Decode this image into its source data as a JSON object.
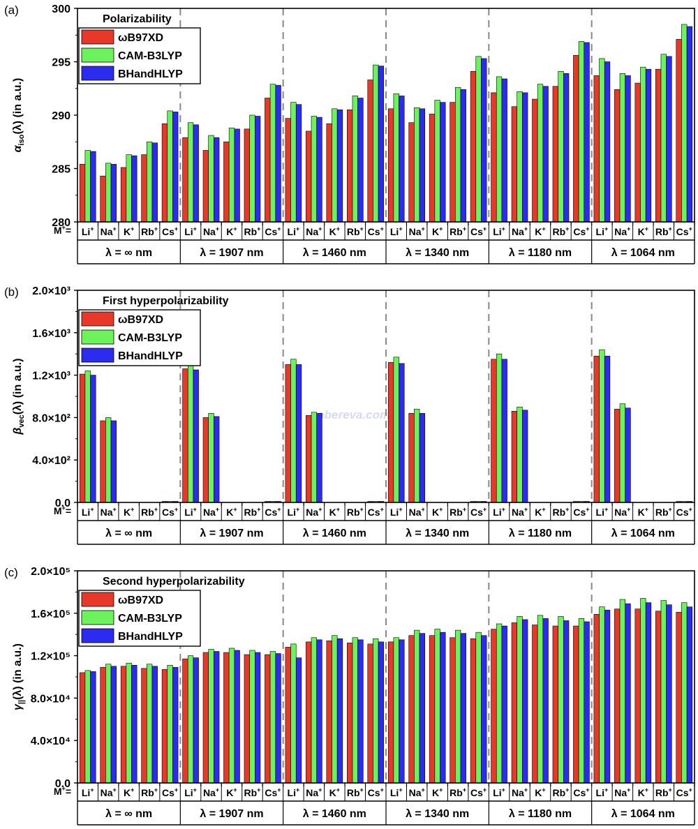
{
  "colors": {
    "series": [
      "#e8382a",
      "#6cf25a",
      "#2c2cf0"
    ]
  },
  "watermark": "sobereva.com",
  "chart_data": [
    {
      "type": "bar",
      "panel_label": "(a)",
      "title": "Polarizability",
      "ylabel_main": "α",
      "ylabel_sub": "iso",
      "ylabel_rest": "(λ) (in a.u.)",
      "ylim": [
        280,
        300
      ],
      "yticks": [
        "280",
        "285",
        "290",
        "295",
        "300"
      ],
      "row_label": "M",
      "row_label_sup": "+",
      "row_label_suffix": "=",
      "ions": [
        "Li",
        "Na",
        "K",
        "Rb",
        "Cs"
      ],
      "ion_sup": "+",
      "groups": [
        "λ = ∞ nm",
        "λ = 1907 nm",
        "λ = 1460 nm",
        "λ = 1340 nm",
        "λ = 1180 nm",
        "λ = 1064 nm"
      ],
      "legend": [
        "ωB97XD",
        "CAM-B3LYP",
        "BHandHLYP"
      ],
      "series": [
        {
          "name": "ωB97XD",
          "values": [
            285.4,
            284.3,
            285.1,
            286.3,
            289.2,
            287.9,
            286.7,
            287.5,
            288.7,
            291.6,
            289.7,
            288.5,
            289.2,
            290.5,
            293.3,
            290.6,
            289.3,
            290.1,
            291.2,
            294.1,
            292.1,
            290.8,
            291.5,
            292.7,
            295.6,
            293.7,
            292.4,
            293.0,
            294.3,
            297.1
          ]
        },
        {
          "name": "CAM-B3LYP",
          "values": [
            286.7,
            285.5,
            286.3,
            287.5,
            290.4,
            289.3,
            288.1,
            288.8,
            290.0,
            292.9,
            291.2,
            289.9,
            290.6,
            291.8,
            294.7,
            292.0,
            290.7,
            291.4,
            292.6,
            295.5,
            293.6,
            292.2,
            292.9,
            294.1,
            296.9,
            295.3,
            293.9,
            294.5,
            295.7,
            298.5
          ]
        },
        {
          "name": "BHandHLYP",
          "values": [
            286.6,
            285.4,
            286.2,
            287.4,
            290.3,
            289.1,
            287.9,
            288.7,
            289.9,
            292.8,
            291.0,
            289.8,
            290.5,
            291.6,
            294.6,
            291.8,
            290.6,
            291.2,
            292.4,
            295.3,
            293.4,
            292.1,
            292.7,
            293.9,
            296.8,
            295.0,
            293.7,
            294.3,
            295.5,
            298.3
          ]
        }
      ]
    },
    {
      "type": "bar",
      "panel_label": "(b)",
      "title": "First hyperpolarizability",
      "ylabel_main": "β",
      "ylabel_sub": "vec",
      "ylabel_rest": "(λ) (in a.u.)",
      "ylim": [
        0,
        2000
      ],
      "yticks": [
        "0.0",
        "4.0×10²",
        "8.0×10²",
        "1.2×10³",
        "1.6×10³",
        "2.0×10³"
      ],
      "row_label": "M",
      "row_label_sup": "+",
      "row_label_suffix": "=",
      "ions": [
        "Li",
        "Na",
        "K",
        "Rb",
        "Cs"
      ],
      "ion_sup": "+",
      "groups": [
        "λ = ∞ nm",
        "λ = 1907 nm",
        "λ = 1460 nm",
        "λ = 1340 nm",
        "λ = 1180 nm",
        "λ = 1064 nm"
      ],
      "legend": [
        "ωB97XD",
        "CAM-B3LYP",
        "BHandHLYP"
      ],
      "series": [
        {
          "name": "ωB97XD",
          "values": [
            1210,
            770,
            0,
            0,
            10,
            1260,
            800,
            0,
            0,
            10,
            1300,
            820,
            0,
            0,
            10,
            1320,
            840,
            0,
            0,
            10,
            1350,
            860,
            0,
            0,
            10,
            1380,
            880,
            0,
            0,
            10
          ]
        },
        {
          "name": "CAM-B3LYP",
          "values": [
            1240,
            800,
            0,
            0,
            10,
            1290,
            840,
            0,
            0,
            10,
            1350,
            850,
            0,
            0,
            10,
            1370,
            880,
            0,
            0,
            10,
            1400,
            900,
            0,
            0,
            10,
            1440,
            930,
            0,
            0,
            10
          ]
        },
        {
          "name": "BHandHLYP",
          "values": [
            1200,
            770,
            0,
            0,
            10,
            1250,
            810,
            0,
            0,
            10,
            1300,
            840,
            0,
            0,
            10,
            1310,
            840,
            0,
            0,
            10,
            1350,
            870,
            0,
            0,
            10,
            1380,
            890,
            0,
            0,
            10
          ]
        }
      ]
    },
    {
      "type": "bar",
      "panel_label": "(c)",
      "title": "Second hyperpolarizability",
      "ylabel_main": "γ",
      "ylabel_sub": "||",
      "ylabel_rest": "(λ) (in a.u.)",
      "ylim": [
        0,
        200000
      ],
      "yticks": [
        "0.0",
        "4.0×10⁴",
        "8.0×10⁴",
        "1.2×10⁵",
        "1.6×10⁵",
        "2.0×10⁵"
      ],
      "row_label": "M",
      "row_label_sup": "+",
      "row_label_suffix": "=",
      "ions": [
        "Li",
        "Na",
        "K",
        "Rb",
        "Cs"
      ],
      "ion_sup": "+",
      "groups": [
        "λ = ∞ nm",
        "λ = 1907 nm",
        "λ = 1460 nm",
        "λ = 1340 nm",
        "λ = 1180 nm",
        "λ = 1064 nm"
      ],
      "legend": [
        "ωB97XD",
        "CAM-B3LYP",
        "BHandHLYP"
      ],
      "series": [
        {
          "name": "ωB97XD",
          "values": [
            104000,
            109000,
            110000,
            108000,
            107000,
            117000,
            123000,
            123000,
            121000,
            121000,
            128000,
            133000,
            134000,
            132000,
            131000,
            133000,
            139000,
            139000,
            137000,
            136000,
            145000,
            151000,
            149000,
            148000,
            148000,
            159000,
            164000,
            164000,
            162000,
            161000
          ]
        },
        {
          "name": "CAM-B3LYP",
          "values": [
            106000,
            112000,
            113000,
            112000,
            111000,
            120000,
            126000,
            127000,
            125000,
            124000,
            131000,
            137000,
            139000,
            137000,
            136000,
            137000,
            144000,
            145000,
            144000,
            142000,
            150000,
            157000,
            158000,
            157000,
            155000,
            166000,
            173000,
            174000,
            172000,
            170000
          ]
        },
        {
          "name": "BHandHLYP",
          "values": [
            105000,
            110000,
            111000,
            110000,
            109000,
            118000,
            124000,
            125000,
            123000,
            122000,
            118000,
            135000,
            136000,
            135000,
            133000,
            135000,
            141000,
            142000,
            141000,
            139000,
            148000,
            154000,
            155000,
            153000,
            152000,
            163000,
            169000,
            170000,
            168000,
            166000
          ]
        }
      ]
    }
  ]
}
